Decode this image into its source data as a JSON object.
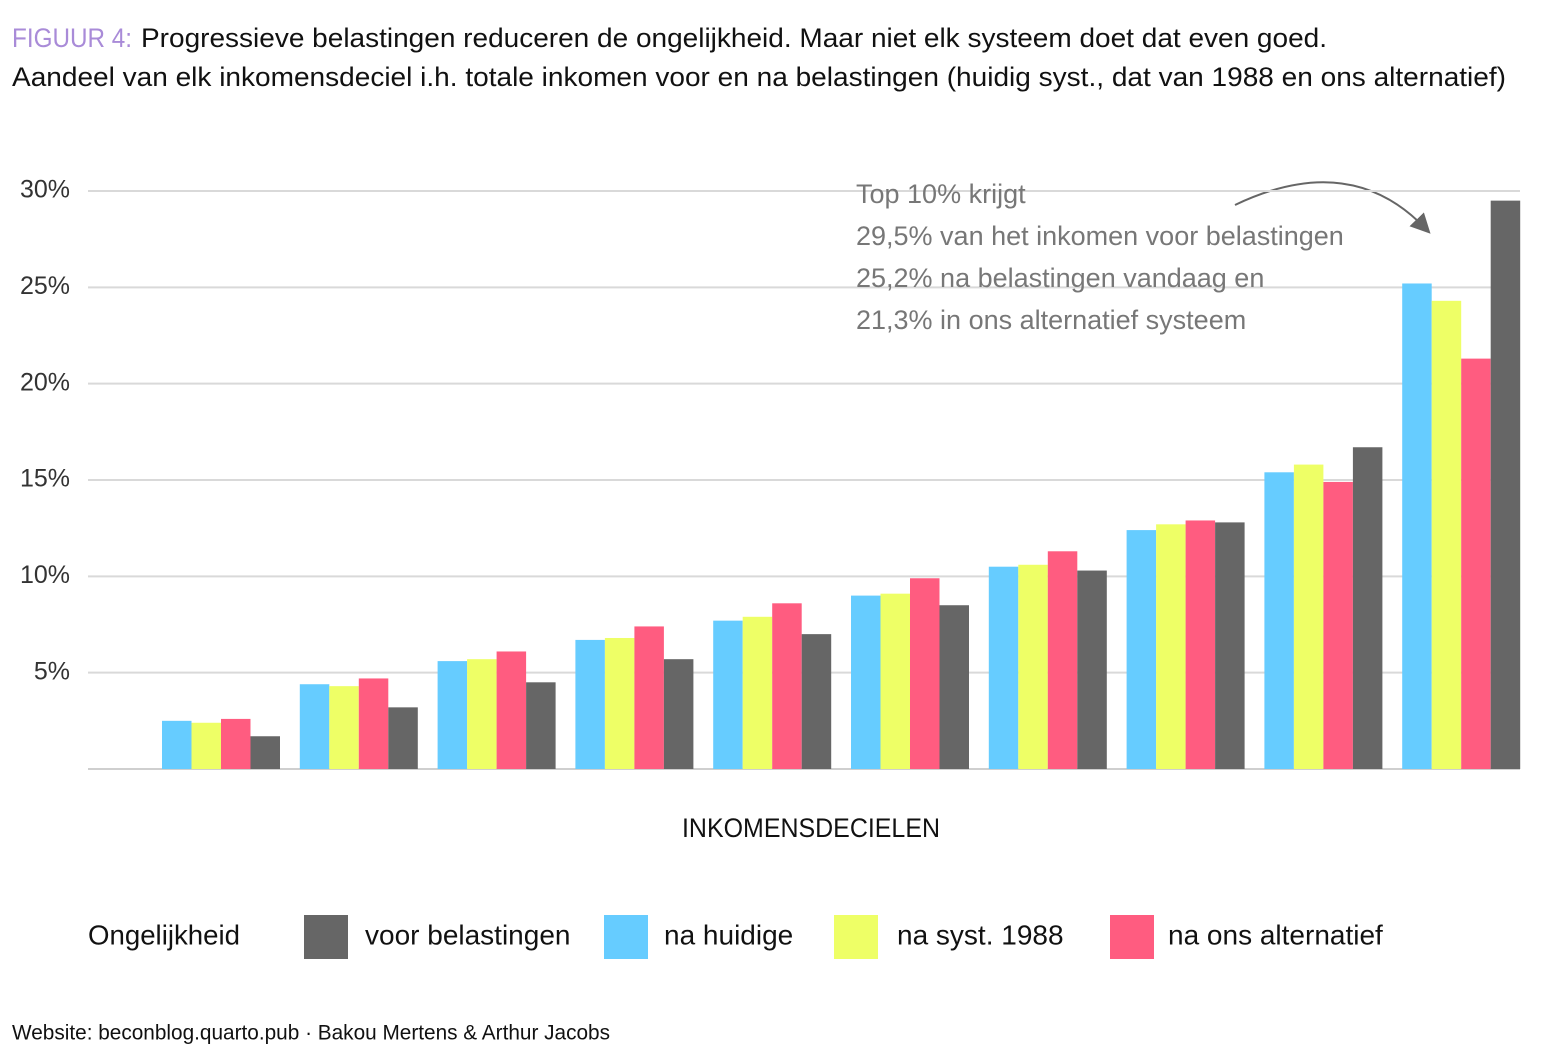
{
  "chart_data": {
    "type": "bar",
    "title_label": "FIGUUR 4:",
    "title": "Progressieve belastingen reduceren de ongelijkheid. Maar niet elk systeem doet dat even goed.",
    "subtitle": "Aandeel van elk inkomensdeciel i.h. totale inkomen voor en na belastingen (huidig syst., dat van 1988 en ons alternatief)",
    "annotation": [
      "Top 10% krijgt",
      "29,5% van het inkomen voor belastingen",
      "25,2% na belastingen vandaag en",
      "21,3% in ons alternatief systeem"
    ],
    "x_label": "INKOMENSDECIELEN",
    "legend_title": "Ongelijkheid",
    "source": "Website: beconblog.quarto.pub · Bakou Mertens & Arthur Jacobs",
    "categories": [
      null,
      null,
      null,
      null,
      null,
      null,
      null,
      null,
      null,
      null
    ],
    "series": [
      {
        "name": "voor belastingen",
        "color": "#666666",
        "values": [
          1.7,
          3.2,
          4.5,
          5.7,
          7.0,
          8.5,
          10.3,
          12.8,
          16.7,
          29.5
        ]
      },
      {
        "name": "na huidige",
        "color": "#66ccff",
        "values": [
          2.5,
          4.4,
          5.6,
          6.7,
          7.7,
          9.0,
          10.5,
          12.4,
          15.4,
          25.2
        ]
      },
      {
        "name": "na syst. 1988",
        "color": "#eeff66",
        "values": [
          2.4,
          4.3,
          5.7,
          6.8,
          7.9,
          9.1,
          10.6,
          12.7,
          15.8,
          24.3
        ]
      },
      {
        "name": "na ons alternatief",
        "color": "#ff5c80",
        "values": [
          2.6,
          4.7,
          6.1,
          7.4,
          8.6,
          9.9,
          11.3,
          12.9,
          14.9,
          21.3
        ]
      }
    ],
    "ylim": [
      0,
      30
    ],
    "yticks": [
      {
        "value": 5,
        "label": "5%"
      },
      {
        "value": 10,
        "label": "10%"
      },
      {
        "value": 15,
        "label": "15%"
      },
      {
        "value": 20,
        "label": "20%"
      },
      {
        "value": 25,
        "label": "25%"
      },
      {
        "value": 30,
        "label": "30%"
      }
    ],
    "grid": true
  }
}
